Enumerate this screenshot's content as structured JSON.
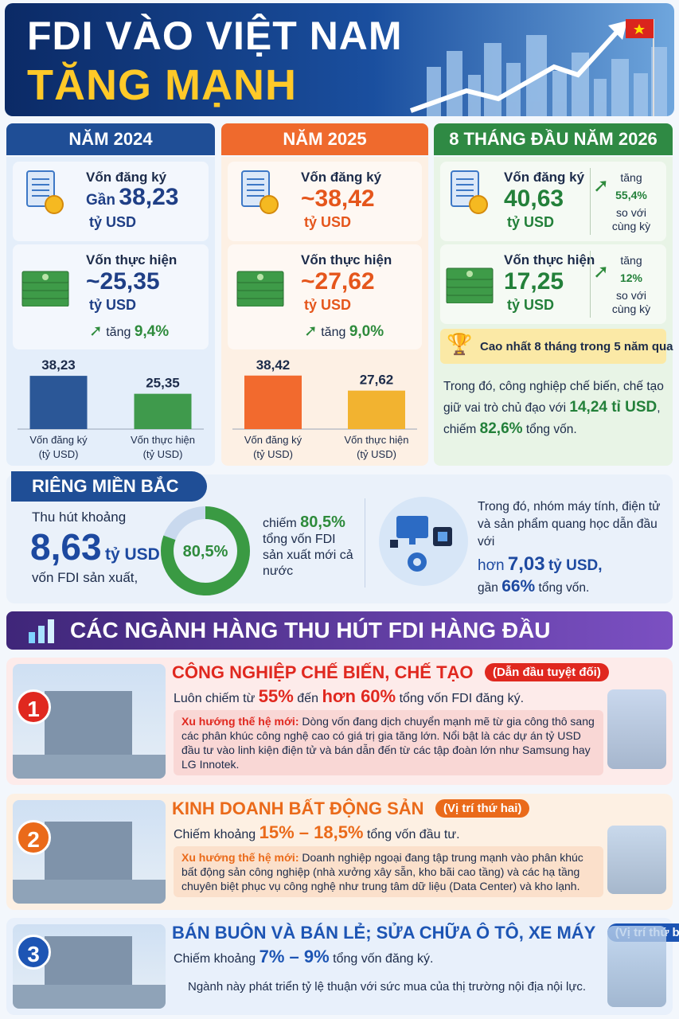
{
  "header": {
    "title_line1": "FDI VÀO VIỆT NAM",
    "title_line2": "TĂNG MẠNH"
  },
  "years": [
    {
      "title": "NĂM 2024",
      "registered": {
        "label": "Vốn đăng ký",
        "prefix": "Gần",
        "value": "38,23",
        "unit": "tỷ USD"
      },
      "disbursed": {
        "label": "Vốn thực hiện",
        "value": "~25,35",
        "unit": "tỷ USD",
        "growth_word": "tăng",
        "growth": "9,4%"
      },
      "chart": {
        "type": "bar",
        "categories": [
          "Vốn đăng ký",
          "Vốn thực hiện"
        ],
        "category_unit": "(tỷ USD)",
        "values": [
          38.23,
          25.35
        ],
        "value_labels": [
          "38,23",
          "25,35"
        ],
        "colors": [
          "#2b5797",
          "#3f9a4c"
        ]
      }
    },
    {
      "title": "NĂM 2025",
      "registered": {
        "label": "Vốn đăng ký",
        "value": "~38,42",
        "unit": "tỷ USD"
      },
      "disbursed": {
        "label": "Vốn thực hiện",
        "value": "~27,62",
        "unit": "tỷ USD",
        "growth_word": "tăng",
        "growth": "9,0%"
      },
      "chart": {
        "type": "bar",
        "categories": [
          "Vốn đăng ký",
          "Vốn thực hiện"
        ],
        "category_unit": "(tỷ USD)",
        "values": [
          38.42,
          27.62
        ],
        "value_labels": [
          "38,42",
          "27,62"
        ],
        "colors": [
          "#f26a2e",
          "#f2b330"
        ]
      }
    },
    {
      "title": "8 THÁNG ĐẦU NĂM 2026",
      "registered": {
        "label": "Vốn đăng ký",
        "value": "40,63",
        "unit": "tỷ USD",
        "growth_word": "tăng",
        "growth": "55,4%",
        "compare": "so với cùng kỳ"
      },
      "disbursed": {
        "label": "Vốn thực hiện",
        "value": "17,25",
        "unit": "tỷ USD",
        "growth_word": "tăng",
        "growth": "12%",
        "compare": "so với cùng kỳ"
      },
      "badge": "Cao nhất 8 tháng trong 5 năm qua",
      "note": {
        "text1": "Trong đó, công nghiệp chế biến, chế tạo giữ vai trò chủ đạo với",
        "amount": "14,24 tỉ USD",
        "text2": "chiếm",
        "share": "82,6%",
        "text3": "tổng vốn."
      }
    }
  ],
  "north": {
    "title": "RIÊNG MIỀN BẮC",
    "lead": "Thu hút khoảng",
    "value": "8,63",
    "unit": "tỷ USD",
    "tail": "vốn FDI sản xuất,",
    "donut": {
      "value": 80.5,
      "label": "80,5%"
    },
    "share_prefix": "chiếm",
    "share_text": "tổng vốn FDI sản xuất mới cả nước",
    "detail": {
      "text1": "Trong đó, nhóm máy tính, điện tử và sản phẩm quang học dẫn đầu với",
      "amount_prefix": "hơn",
      "amount": "7,03",
      "unit": "tỷ USD,",
      "share_prefix": "gần",
      "share": "66%",
      "share_tail": "tổng vốn."
    }
  },
  "industries": {
    "title": "CÁC NGÀNH HÀNG THU HÚT FDI HÀNG ĐẦU",
    "items": [
      {
        "rank": "1",
        "name": "CÔNG NGHIỆP CHẾ BIẾN, CHẾ TẠO",
        "tag": "(Dẫn đầu tuyệt đối)",
        "share": [
          "Luôn chiếm từ",
          "55%",
          "đến",
          "hơn 60%",
          "tổng vốn FDI đăng ký."
        ],
        "trend_label": "Xu hướng thế hệ mới:",
        "trend": "Dòng vốn đang dịch chuyển mạnh mẽ từ gia công thô sang các phân khúc công nghệ cao có giá trị gia tăng lớn. Nổi bật là các dự án tỷ USD đầu tư vào linh kiện điện tử và bán dẫn đến từ các tập đoàn lớn như Samsung hay LG Innotek."
      },
      {
        "rank": "2",
        "name": "KINH DOANH BẤT ĐỘNG SẢN",
        "tag": "(Vị trí thứ hai)",
        "share": [
          "Chiếm khoảng",
          "15% – 18,5%",
          "tổng vốn đầu tư."
        ],
        "trend_label": "Xu hướng thế hệ mới:",
        "trend": "Doanh nghiệp ngoại đang tập trung mạnh vào phân khúc bất động sản công nghiệp (nhà xưởng xây sẵn, kho bãi cao tầng) và các hạ tầng chuyên biệt phục vụ công nghệ như trung tâm dữ liệu (Data Center) và kho lạnh."
      },
      {
        "rank": "3",
        "name": "BÁN BUÔN VÀ BÁN LẺ; SỬA CHỮA Ô TÔ, XE MÁY",
        "tag": "(Vị trí thứ ba)",
        "share": [
          "Chiếm khoảng",
          "7% – 9%",
          "tổng vốn đăng ký."
        ],
        "note": "Ngành này phát triển tỷ lệ thuận với sức mua của thị trường nội địa nội lực."
      }
    ]
  }
}
